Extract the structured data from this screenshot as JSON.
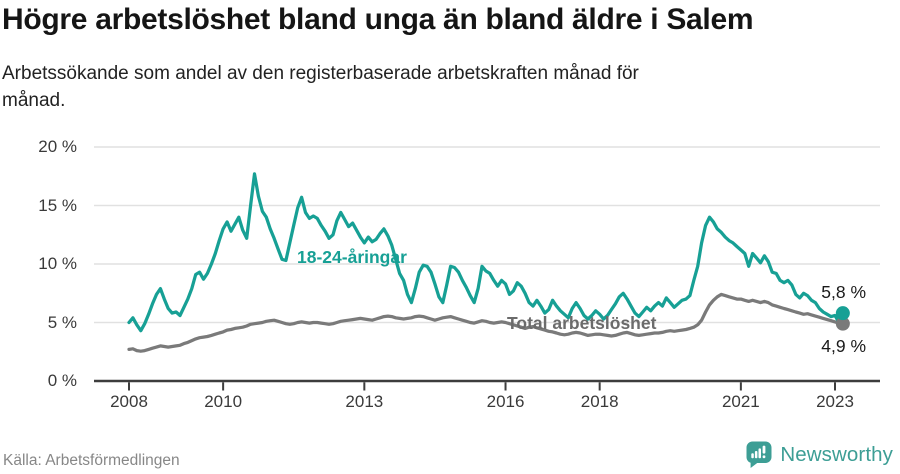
{
  "footer": {
    "source": "Källa: Arbetsförmedlingen",
    "brand": "Newsworthy",
    "brand_color": "#3D9E95"
  },
  "icons": {
    "brand_logo": "newsworthy-speech-bubble-bar-chart-icon"
  },
  "chart_data": {
    "type": "line",
    "title": "Högre arbetslöshet bland unga än bland äldre i Salem",
    "subtitle": "Arbetssökande som andel av den registerbaserade arbetskraften månad för månad.",
    "unit": "%",
    "frequency": "monthly",
    "x_start": "2008-01",
    "x_end": "2023-03",
    "ylim": [
      0,
      20
    ],
    "grid": "horizontal",
    "legend_position": "inline-annotations",
    "y_ticks": [
      {
        "label": "0 %",
        "value": 0
      },
      {
        "label": "5 %",
        "value": 5
      },
      {
        "label": "10 %",
        "value": 10
      },
      {
        "label": "15 %",
        "value": 15
      },
      {
        "label": "20 %",
        "value": 20
      }
    ],
    "x_ticks": [
      {
        "label": "2008",
        "year": 2008
      },
      {
        "label": "2010",
        "year": 2010
      },
      {
        "label": "2013",
        "year": 2013
      },
      {
        "label": "2016",
        "year": 2016
      },
      {
        "label": "2018",
        "year": 2018
      },
      {
        "label": "2021",
        "year": 2021
      },
      {
        "label": "2023",
        "year": 2023
      }
    ],
    "series": [
      {
        "name": "18-24-åringar",
        "color": "#17A095",
        "end_label": "5,8 %",
        "end_value": 5.8,
        "values": [
          5.0,
          5.4,
          4.8,
          4.3,
          4.9,
          5.7,
          6.6,
          7.4,
          7.9,
          7.0,
          6.2,
          5.8,
          5.9,
          5.6,
          6.3,
          7.0,
          7.9,
          9.1,
          9.3,
          8.7,
          9.2,
          10.0,
          10.9,
          12.0,
          13.0,
          13.6,
          12.8,
          13.4,
          14.0,
          12.9,
          12.2,
          15.0,
          17.7,
          15.8,
          14.5,
          14.0,
          13.0,
          12.2,
          11.3,
          10.4,
          10.3,
          11.8,
          13.3,
          14.8,
          15.7,
          14.4,
          13.9,
          14.1,
          13.9,
          13.3,
          12.8,
          12.2,
          12.5,
          13.7,
          14.4,
          13.8,
          13.2,
          13.5,
          12.9,
          12.3,
          11.8,
          12.3,
          11.9,
          12.1,
          12.6,
          13.0,
          12.4,
          11.6,
          10.4,
          9.2,
          8.6,
          7.4,
          6.7,
          7.9,
          9.3,
          9.9,
          9.8,
          9.3,
          8.3,
          7.2,
          6.7,
          8.2,
          9.8,
          9.7,
          9.3,
          8.6,
          8.0,
          7.3,
          6.7,
          7.9,
          9.8,
          9.4,
          9.2,
          8.6,
          8.1,
          8.6,
          8.3,
          7.4,
          7.7,
          8.4,
          8.1,
          7.5,
          6.7,
          6.4,
          6.9,
          6.4,
          5.8,
          6.1,
          6.9,
          6.4,
          6.0,
          5.7,
          5.4,
          6.2,
          6.7,
          6.2,
          5.6,
          5.3,
          5.6,
          6.0,
          5.7,
          5.3,
          5.6,
          6.1,
          6.6,
          7.2,
          7.5,
          7.0,
          6.4,
          5.8,
          5.5,
          5.9,
          6.3,
          6.0,
          6.4,
          6.7,
          6.4,
          7.1,
          6.7,
          6.3,
          6.6,
          6.9,
          7.0,
          7.3,
          8.6,
          9.8,
          11.8,
          13.3,
          14.0,
          13.6,
          13.0,
          12.7,
          12.3,
          12.0,
          11.8,
          11.5,
          11.2,
          10.9,
          9.8,
          10.9,
          10.5,
          10.1,
          10.7,
          10.2,
          9.3,
          9.2,
          8.6,
          8.4,
          8.6,
          8.2,
          7.4,
          7.1,
          7.5,
          7.3,
          6.9,
          6.7,
          6.2,
          5.9,
          5.7,
          5.5,
          5.6,
          5.0,
          5.8
        ]
      },
      {
        "name": "Total arbetslöshet",
        "color": "#7A7A7A",
        "end_label": "4,9 %",
        "end_value": 4.9,
        "values": [
          2.7,
          2.75,
          2.6,
          2.55,
          2.6,
          2.7,
          2.8,
          2.9,
          3.0,
          2.95,
          2.9,
          2.95,
          3.0,
          3.05,
          3.2,
          3.3,
          3.45,
          3.6,
          3.7,
          3.75,
          3.8,
          3.9,
          4.0,
          4.1,
          4.2,
          4.35,
          4.4,
          4.5,
          4.55,
          4.6,
          4.7,
          4.85,
          4.9,
          4.95,
          5.0,
          5.1,
          5.15,
          5.2,
          5.1,
          5.0,
          4.9,
          4.85,
          4.9,
          5.0,
          5.05,
          5.0,
          4.95,
          5.0,
          5.0,
          4.95,
          4.9,
          4.85,
          4.9,
          5.0,
          5.1,
          5.15,
          5.2,
          5.25,
          5.3,
          5.35,
          5.3,
          5.25,
          5.2,
          5.3,
          5.4,
          5.5,
          5.55,
          5.5,
          5.4,
          5.35,
          5.3,
          5.35,
          5.4,
          5.5,
          5.55,
          5.5,
          5.4,
          5.3,
          5.2,
          5.3,
          5.4,
          5.45,
          5.5,
          5.4,
          5.3,
          5.2,
          5.1,
          5.0,
          4.95,
          5.05,
          5.15,
          5.1,
          5.0,
          4.95,
          5.0,
          5.05,
          5.0,
          4.9,
          4.8,
          4.7,
          4.6,
          4.5,
          4.6,
          4.65,
          4.55,
          4.45,
          4.35,
          4.25,
          4.2,
          4.1,
          4.0,
          3.95,
          4.0,
          4.1,
          4.15,
          4.1,
          4.0,
          3.9,
          3.95,
          4.0,
          4.0,
          3.95,
          3.9,
          3.85,
          3.9,
          4.0,
          4.1,
          4.15,
          4.05,
          3.95,
          3.9,
          3.95,
          4.0,
          4.05,
          4.1,
          4.1,
          4.15,
          4.25,
          4.3,
          4.25,
          4.3,
          4.35,
          4.4,
          4.5,
          4.6,
          4.8,
          5.2,
          5.9,
          6.5,
          6.9,
          7.2,
          7.4,
          7.3,
          7.2,
          7.1,
          7.0,
          7.0,
          6.9,
          6.8,
          6.9,
          6.8,
          6.7,
          6.8,
          6.7,
          6.5,
          6.4,
          6.3,
          6.2,
          6.1,
          6.0,
          5.9,
          5.8,
          5.7,
          5.75,
          5.65,
          5.55,
          5.45,
          5.35,
          5.25,
          5.15,
          5.05,
          4.95,
          4.9
        ]
      }
    ],
    "style": {
      "grid_color": "#E1E1E1",
      "axis_color": "#3D3D3D",
      "tick_text_color": "#3a3a3a"
    }
  }
}
